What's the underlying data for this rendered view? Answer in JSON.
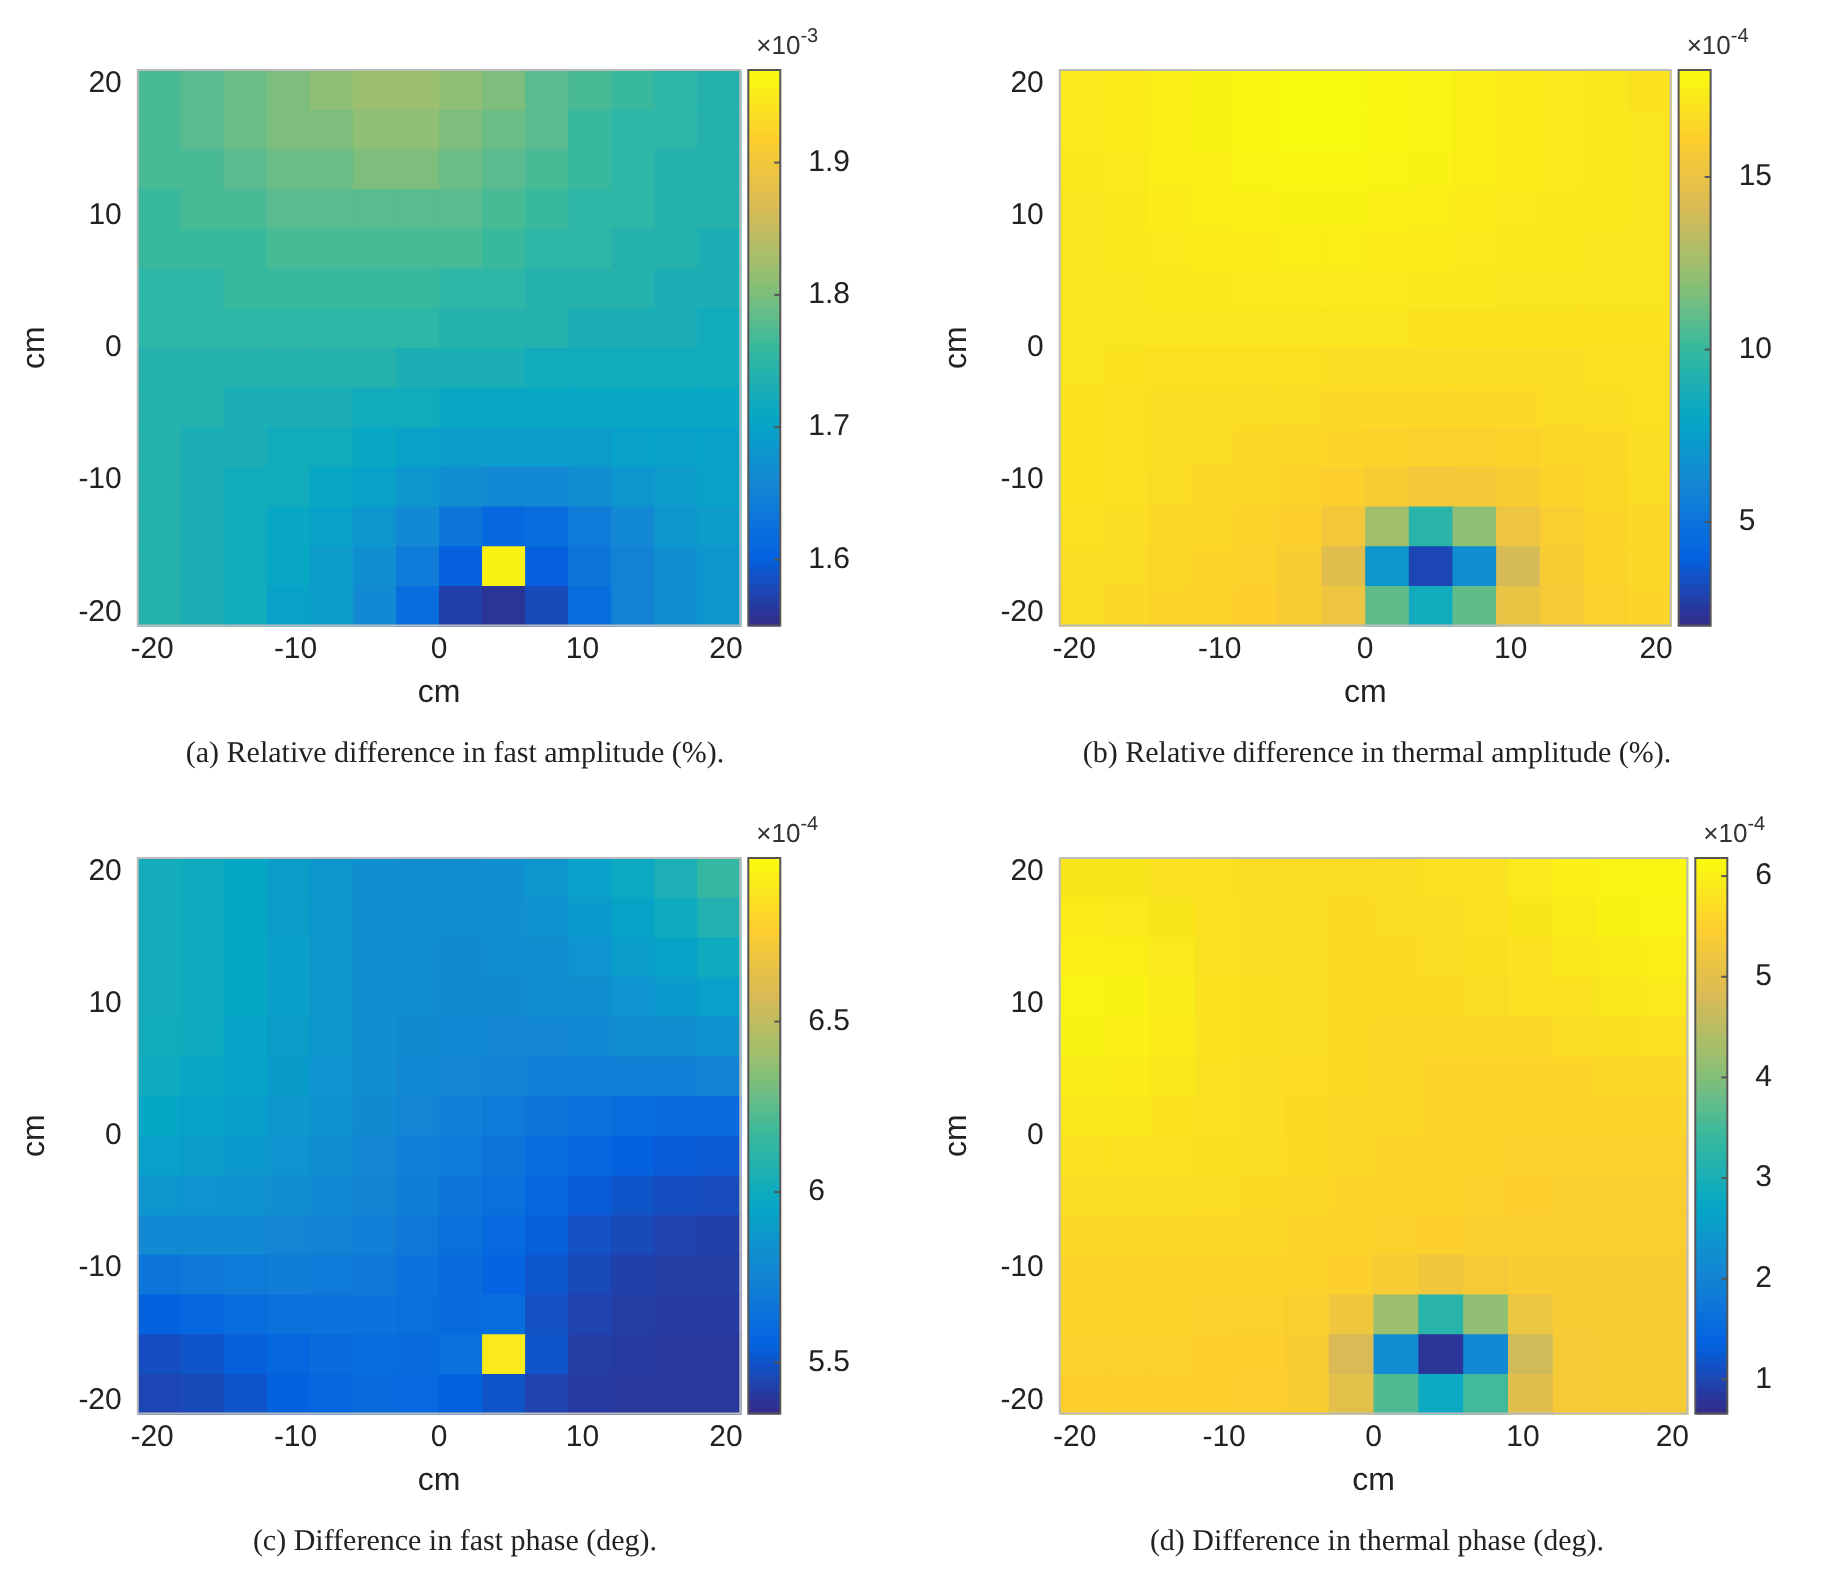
{
  "chart_data": [
    {
      "type": "heatmap",
      "title": "(a) Relative difference in fast amplitude (%).",
      "xlabel": "cm",
      "ylabel": "cm",
      "clabel": "×10$^{-3}$",
      "xlim": [
        -21,
        21
      ],
      "ylim": [
        -21,
        21
      ],
      "xticks": [
        -20,
        -10,
        0,
        10,
        20
      ],
      "yticks": [
        -20,
        -10,
        0,
        10,
        20
      ],
      "clim": [
        1.55,
        1.97
      ],
      "cticks": [
        1.6,
        1.7,
        1.8,
        1.9
      ],
      "cells": [
        [
          1.77,
          1.78,
          1.79,
          1.8,
          1.81,
          1.82,
          1.82,
          1.81,
          1.8,
          1.78,
          1.77,
          1.76,
          1.75,
          1.74
        ],
        [
          1.77,
          1.78,
          1.79,
          1.8,
          1.8,
          1.81,
          1.81,
          1.8,
          1.79,
          1.78,
          1.76,
          1.75,
          1.75,
          1.74
        ],
        [
          1.77,
          1.77,
          1.78,
          1.79,
          1.79,
          1.8,
          1.8,
          1.79,
          1.78,
          1.77,
          1.76,
          1.75,
          1.74,
          1.74
        ],
        [
          1.76,
          1.77,
          1.77,
          1.78,
          1.78,
          1.78,
          1.78,
          1.78,
          1.77,
          1.76,
          1.75,
          1.75,
          1.74,
          1.74
        ],
        [
          1.76,
          1.76,
          1.76,
          1.77,
          1.77,
          1.77,
          1.77,
          1.77,
          1.76,
          1.75,
          1.75,
          1.74,
          1.74,
          1.73
        ],
        [
          1.75,
          1.75,
          1.76,
          1.76,
          1.76,
          1.76,
          1.76,
          1.75,
          1.75,
          1.74,
          1.74,
          1.74,
          1.73,
          1.73
        ],
        [
          1.75,
          1.75,
          1.75,
          1.75,
          1.75,
          1.75,
          1.75,
          1.74,
          1.74,
          1.74,
          1.73,
          1.73,
          1.73,
          1.72
        ],
        [
          1.74,
          1.74,
          1.74,
          1.74,
          1.74,
          1.74,
          1.73,
          1.73,
          1.73,
          1.72,
          1.72,
          1.72,
          1.72,
          1.72
        ],
        [
          1.74,
          1.74,
          1.73,
          1.73,
          1.73,
          1.72,
          1.72,
          1.71,
          1.71,
          1.71,
          1.71,
          1.71,
          1.71,
          1.71
        ],
        [
          1.74,
          1.73,
          1.73,
          1.72,
          1.72,
          1.71,
          1.7,
          1.69,
          1.69,
          1.69,
          1.69,
          1.7,
          1.7,
          1.7
        ],
        [
          1.74,
          1.73,
          1.72,
          1.72,
          1.71,
          1.7,
          1.68,
          1.67,
          1.66,
          1.66,
          1.67,
          1.68,
          1.69,
          1.7
        ],
        [
          1.74,
          1.73,
          1.72,
          1.71,
          1.7,
          1.68,
          1.66,
          1.63,
          1.61,
          1.62,
          1.64,
          1.66,
          1.68,
          1.69
        ],
        [
          1.74,
          1.73,
          1.72,
          1.71,
          1.69,
          1.67,
          1.64,
          1.6,
          1.96,
          1.6,
          1.63,
          1.65,
          1.67,
          1.68
        ],
        [
          1.74,
          1.73,
          1.72,
          1.7,
          1.69,
          1.66,
          1.62,
          1.57,
          1.56,
          1.58,
          1.62,
          1.65,
          1.67,
          1.68
        ]
      ]
    },
    {
      "type": "heatmap",
      "title": "(b) Relative difference in thermal amplitude (%).",
      "xlabel": "cm",
      "ylabel": "cm",
      "clabel": "×10$^{-4}$",
      "xlim": [
        -21,
        21
      ],
      "ylim": [
        -21,
        21
      ],
      "xticks": [
        -20,
        -10,
        0,
        10,
        20
      ],
      "yticks": [
        -20,
        -10,
        0,
        10,
        20
      ],
      "clim": [
        2,
        18.1
      ],
      "cticks": [
        5,
        10,
        15
      ],
      "cells": [
        [
          17.3,
          17.4,
          17.5,
          17.7,
          17.9,
          18.0,
          18.0,
          17.9,
          17.8,
          17.6,
          17.4,
          17.3,
          17.2,
          17.0
        ],
        [
          17.3,
          17.4,
          17.5,
          17.7,
          17.9,
          18.0,
          18.0,
          17.9,
          17.8,
          17.6,
          17.4,
          17.3,
          17.2,
          17.1
        ],
        [
          17.2,
          17.3,
          17.5,
          17.6,
          17.8,
          17.9,
          17.9,
          17.8,
          17.7,
          17.5,
          17.4,
          17.3,
          17.2,
          17.1
        ],
        [
          17.1,
          17.2,
          17.4,
          17.5,
          17.6,
          17.7,
          17.7,
          17.6,
          17.5,
          17.4,
          17.3,
          17.2,
          17.2,
          17.1
        ],
        [
          17.1,
          17.2,
          17.3,
          17.4,
          17.4,
          17.5,
          17.5,
          17.4,
          17.4,
          17.3,
          17.2,
          17.2,
          17.1,
          17.1
        ],
        [
          17.1,
          17.1,
          17.2,
          17.2,
          17.3,
          17.3,
          17.3,
          17.3,
          17.2,
          17.2,
          17.1,
          17.1,
          17.1,
          17.1
        ],
        [
          17.1,
          17.1,
          17.1,
          17.1,
          17.1,
          17.1,
          17.1,
          17.1,
          17.0,
          17.0,
          17.0,
          17.0,
          17.0,
          17.0
        ],
        [
          17.1,
          17.0,
          16.9,
          16.9,
          16.9,
          16.9,
          16.8,
          16.8,
          16.8,
          16.8,
          16.8,
          16.8,
          16.9,
          16.9
        ],
        [
          17.0,
          16.9,
          16.8,
          16.8,
          16.7,
          16.7,
          16.6,
          16.6,
          16.6,
          16.6,
          16.6,
          16.7,
          16.8,
          16.9
        ],
        [
          17.0,
          16.9,
          16.8,
          16.7,
          16.6,
          16.5,
          16.4,
          16.3,
          16.2,
          16.2,
          16.3,
          16.5,
          16.6,
          16.8
        ],
        [
          17.0,
          16.9,
          16.7,
          16.6,
          16.5,
          16.3,
          16.1,
          15.8,
          15.5,
          15.6,
          15.9,
          16.3,
          16.5,
          16.7
        ],
        [
          16.9,
          16.8,
          16.6,
          16.5,
          16.3,
          16.1,
          15.5,
          12.5,
          9.5,
          12.0,
          15.2,
          16.0,
          16.4,
          16.6
        ],
        [
          16.8,
          16.7,
          16.5,
          16.4,
          16.2,
          15.9,
          14.5,
          7.0,
          3.0,
          6.5,
          14.0,
          15.8,
          16.3,
          16.5
        ],
        [
          16.7,
          16.6,
          16.4,
          16.3,
          16.1,
          15.8,
          15.2,
          11.0,
          8.5,
          11.0,
          15.0,
          15.7,
          16.2,
          16.4
        ]
      ]
    },
    {
      "type": "heatmap",
      "title": "(c) Difference in fast phase (deg).",
      "xlabel": "cm",
      "ylabel": "cm",
      "clabel": "×10$^{-4}$",
      "xlim": [
        -21,
        21
      ],
      "ylim": [
        -21,
        21
      ],
      "xticks": [
        -20,
        -10,
        0,
        10,
        20
      ],
      "yticks": [
        -20,
        -10,
        0,
        10,
        20
      ],
      "clim": [
        5.35,
        6.98
      ],
      "cticks": [
        5.5,
        6,
        6.5
      ],
      "cells": [
        [
          6.02,
          6.0,
          5.96,
          5.9,
          5.86,
          5.82,
          5.8,
          5.8,
          5.82,
          5.86,
          5.92,
          5.98,
          6.05,
          6.15
        ],
        [
          6.02,
          6.0,
          5.96,
          5.9,
          5.86,
          5.82,
          5.8,
          5.8,
          5.81,
          5.84,
          5.88,
          5.94,
          6.0,
          6.08
        ],
        [
          6.02,
          6.0,
          5.96,
          5.91,
          5.86,
          5.82,
          5.8,
          5.79,
          5.8,
          5.82,
          5.85,
          5.9,
          5.94,
          6.0
        ],
        [
          6.02,
          6.0,
          5.96,
          5.91,
          5.86,
          5.82,
          5.8,
          5.79,
          5.79,
          5.8,
          5.82,
          5.85,
          5.88,
          5.92
        ],
        [
          6.01,
          5.99,
          5.95,
          5.9,
          5.86,
          5.82,
          5.79,
          5.78,
          5.77,
          5.77,
          5.78,
          5.8,
          5.82,
          5.84
        ],
        [
          5.99,
          5.97,
          5.94,
          5.89,
          5.85,
          5.81,
          5.78,
          5.76,
          5.74,
          5.73,
          5.72,
          5.72,
          5.73,
          5.74
        ],
        [
          5.96,
          5.94,
          5.91,
          5.87,
          5.83,
          5.79,
          5.76,
          5.73,
          5.7,
          5.67,
          5.64,
          5.62,
          5.61,
          5.6
        ],
        [
          5.92,
          5.9,
          5.88,
          5.85,
          5.81,
          5.77,
          5.73,
          5.7,
          5.66,
          5.62,
          5.58,
          5.55,
          5.53,
          5.52
        ],
        [
          5.86,
          5.85,
          5.84,
          5.81,
          5.78,
          5.75,
          5.71,
          5.67,
          5.63,
          5.58,
          5.53,
          5.5,
          5.48,
          5.47
        ],
        [
          5.78,
          5.78,
          5.78,
          5.76,
          5.74,
          5.72,
          5.68,
          5.64,
          5.59,
          5.54,
          5.49,
          5.46,
          5.44,
          5.43
        ],
        [
          5.66,
          5.68,
          5.7,
          5.71,
          5.7,
          5.68,
          5.65,
          5.61,
          5.56,
          5.51,
          5.46,
          5.43,
          5.42,
          5.42
        ],
        [
          5.55,
          5.58,
          5.62,
          5.64,
          5.65,
          5.65,
          5.63,
          5.6,
          5.62,
          5.49,
          5.44,
          5.42,
          5.41,
          5.41
        ],
        [
          5.48,
          5.5,
          5.54,
          5.58,
          5.61,
          5.62,
          5.61,
          5.63,
          6.9,
          5.5,
          5.42,
          5.41,
          5.4,
          5.4
        ],
        [
          5.45,
          5.46,
          5.5,
          5.55,
          5.58,
          5.6,
          5.59,
          5.55,
          5.5,
          5.44,
          5.41,
          5.4,
          5.4,
          5.4
        ]
      ]
    },
    {
      "type": "heatmap",
      "title": "(d) Difference in thermal phase (deg).",
      "xlabel": "cm",
      "ylabel": "cm",
      "clabel": "×10$^{-4}$",
      "xlim": [
        -21,
        21
      ],
      "ylim": [
        -21,
        21
      ],
      "xticks": [
        -20,
        -10,
        0,
        10,
        20
      ],
      "yticks": [
        -20,
        -10,
        0,
        10,
        20
      ],
      "clim": [
        0.66,
        6.18
      ],
      "cticks": [
        1,
        2,
        3,
        4,
        5,
        6
      ],
      "cells": [
        [
          5.85,
          5.85,
          5.8,
          5.75,
          5.7,
          5.7,
          5.7,
          5.72,
          5.75,
          5.8,
          5.9,
          6.0,
          6.08,
          6.1
        ],
        [
          5.92,
          5.9,
          5.85,
          5.78,
          5.72,
          5.7,
          5.68,
          5.7,
          5.72,
          5.78,
          5.85,
          5.95,
          6.02,
          6.05
        ],
        [
          6.0,
          5.98,
          5.9,
          5.8,
          5.72,
          5.7,
          5.68,
          5.68,
          5.7,
          5.74,
          5.8,
          5.88,
          5.95,
          5.98
        ],
        [
          6.05,
          6.02,
          5.93,
          5.82,
          5.74,
          5.7,
          5.68,
          5.67,
          5.68,
          5.7,
          5.75,
          5.8,
          5.86,
          5.9
        ],
        [
          6.02,
          6.0,
          5.92,
          5.82,
          5.74,
          5.7,
          5.68,
          5.66,
          5.64,
          5.64,
          5.66,
          5.7,
          5.74,
          5.78
        ],
        [
          5.95,
          5.94,
          5.88,
          5.8,
          5.73,
          5.69,
          5.67,
          5.65,
          5.62,
          5.6,
          5.6,
          5.62,
          5.64,
          5.66
        ],
        [
          5.88,
          5.87,
          5.83,
          5.77,
          5.72,
          5.68,
          5.66,
          5.63,
          5.6,
          5.57,
          5.56,
          5.56,
          5.57,
          5.58
        ],
        [
          5.8,
          5.8,
          5.78,
          5.74,
          5.7,
          5.67,
          5.64,
          5.61,
          5.58,
          5.55,
          5.53,
          5.52,
          5.52,
          5.52
        ],
        [
          5.73,
          5.73,
          5.72,
          5.7,
          5.67,
          5.64,
          5.61,
          5.58,
          5.55,
          5.52,
          5.5,
          5.48,
          5.48,
          5.48
        ],
        [
          5.66,
          5.66,
          5.66,
          5.65,
          5.63,
          5.6,
          5.57,
          5.54,
          5.5,
          5.48,
          5.46,
          5.45,
          5.45,
          5.45
        ],
        [
          5.6,
          5.6,
          5.6,
          5.59,
          5.58,
          5.55,
          5.5,
          5.4,
          5.25,
          5.35,
          5.42,
          5.43,
          5.43,
          5.43
        ],
        [
          5.55,
          5.55,
          5.55,
          5.54,
          5.52,
          5.48,
          5.25,
          4.2,
          3.2,
          4.1,
          5.2,
          5.4,
          5.42,
          5.42
        ],
        [
          5.52,
          5.52,
          5.52,
          5.51,
          5.49,
          5.44,
          4.8,
          2.2,
          0.8,
          2.1,
          4.7,
          5.36,
          5.4,
          5.41
        ],
        [
          5.5,
          5.5,
          5.5,
          5.49,
          5.47,
          5.42,
          5.0,
          3.6,
          2.8,
          3.5,
          4.95,
          5.35,
          5.39,
          5.4
        ]
      ]
    }
  ]
}
